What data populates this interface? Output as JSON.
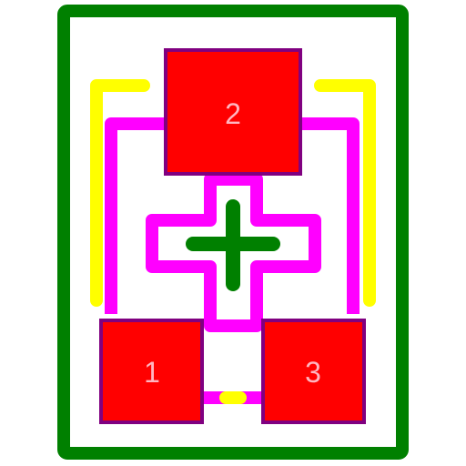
{
  "diagram": {
    "type": "pcb-footprint",
    "pads": [
      {
        "number": "1"
      },
      {
        "number": "2"
      },
      {
        "number": "3"
      }
    ]
  },
  "colors": {
    "background": "#ffffff",
    "courtyard": "#008000",
    "silkscreen": "#ffff00",
    "fabrication": "#ff00ff",
    "pad_fill": "#ff0000",
    "pad_outline": "#800080",
    "pad_text": "#ffb6c1",
    "center_mark": "#008000"
  }
}
